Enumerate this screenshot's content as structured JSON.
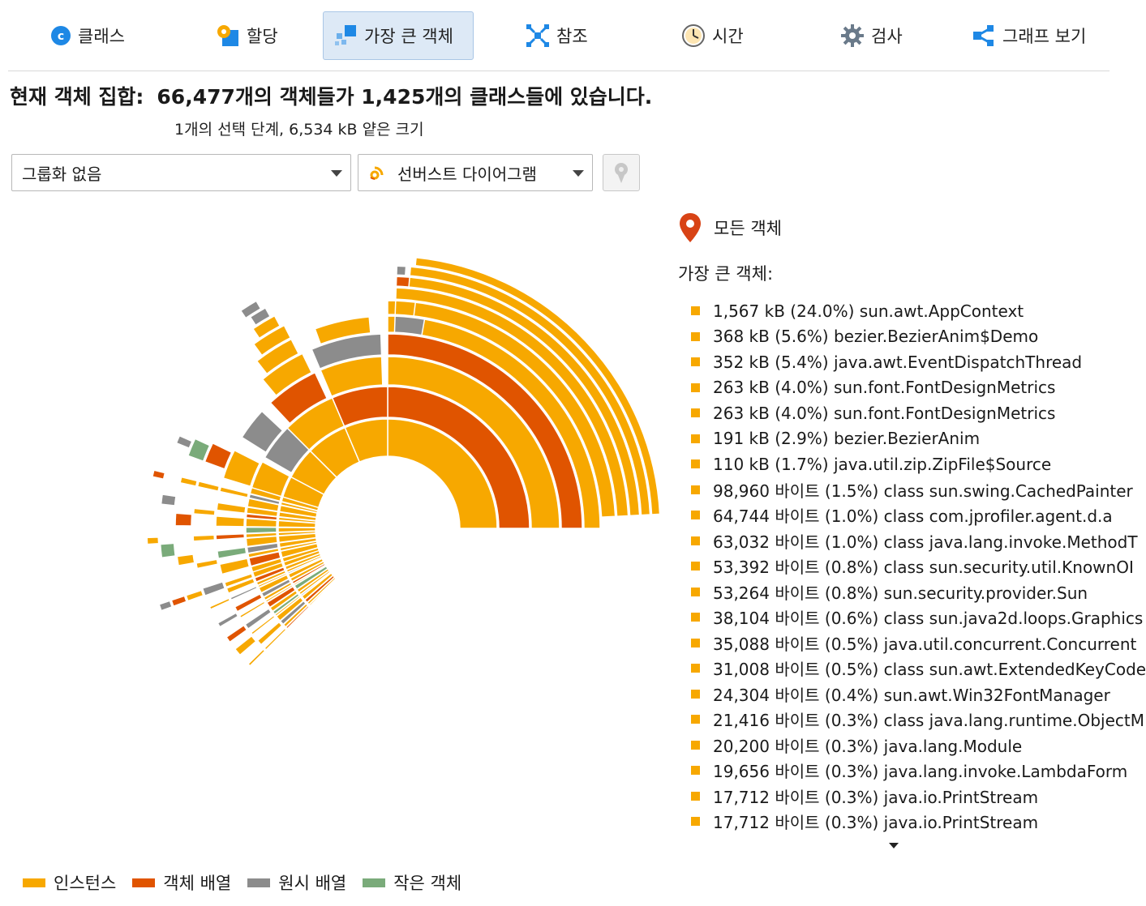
{
  "tabs": [
    {
      "label": "클래스",
      "icon": "class-c-icon",
      "active": false
    },
    {
      "label": "할당",
      "icon": "allocation-icon",
      "active": false
    },
    {
      "label": "가장 큰 객체",
      "icon": "biggest-objects-icon",
      "active": true
    },
    {
      "label": "참조",
      "icon": "references-icon",
      "active": false
    },
    {
      "label": "시간",
      "icon": "clock-icon",
      "active": false
    },
    {
      "label": "검사",
      "icon": "gear-icon",
      "active": false
    },
    {
      "label": "그래프 보기",
      "icon": "graph-icon",
      "active": false
    }
  ],
  "header": {
    "label": "현재 객체 집합:",
    "summary": "66,477개의 객체들가 1,425개의 클래스들에 있습니다.",
    "sub": "1개의 선택 단계, 6,534 kB 얕은 크기"
  },
  "controls": {
    "grouping": "그룹화 없음",
    "view": "선버스트 다이어그램",
    "view_icon": "sunburst-icon",
    "pin_icon": "pin-icon"
  },
  "right_panel": {
    "root_label": "모든 객체",
    "root_icon": "location-pin-icon",
    "list_title": "가장 큰 객체:",
    "items": [
      "1,567 kB (24.0%) sun.awt.AppContext",
      "368 kB (5.6%) bezier.BezierAnim$Demo",
      "352 kB (5.4%) java.awt.EventDispatchThread",
      "263 kB (4.0%) sun.font.FontDesignMetrics",
      "263 kB (4.0%) sun.font.FontDesignMetrics",
      "191 kB (2.9%) bezier.BezierAnim",
      "110 kB (1.7%) java.util.zip.ZipFile$Source",
      "98,960 바이트 (1.5%) class sun.swing.CachedPainter",
      "64,744 바이트 (1.0%) class com.jprofiler.agent.d.a",
      "63,032 바이트 (1.0%) class java.lang.invoke.MethodT",
      "53,392 바이트 (0.8%) class sun.security.util.KnownOI",
      "53,264 바이트 (0.8%) sun.security.provider.Sun",
      "38,104 바이트 (0.6%) class sun.java2d.loops.Graphics",
      "35,088 바이트 (0.5%) java.util.concurrent.Concurrent",
      "31,008 바이트 (0.5%) class sun.awt.ExtendedKeyCode",
      "24,304 바이트 (0.4%) sun.awt.Win32FontManager",
      "21,416 바이트 (0.3%) class java.lang.runtime.ObjectM",
      "20,200 바이트 (0.3%) java.lang.Module",
      "19,656 바이트 (0.3%) java.lang.invoke.LambdaForm",
      "17,712 바이트 (0.3%) java.io.PrintStream",
      "17,712 바이트 (0.3%) java.io.PrintStream"
    ]
  },
  "legend": [
    {
      "label": "인스턴스",
      "color": "#f7a800"
    },
    {
      "label": "객체 배열",
      "color": "#e05400"
    },
    {
      "label": "원시 배열",
      "color": "#8c8c8c"
    },
    {
      "label": "작은 객체",
      "color": "#7aab7a"
    }
  ],
  "colors": {
    "accent": "#1e88e5",
    "instance": "#f7a800",
    "object_array": "#e05400",
    "primitive_array": "#8c8c8c",
    "small_object": "#7aab7a"
  }
}
